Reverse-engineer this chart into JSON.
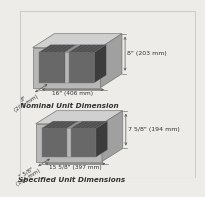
{
  "background_color": "#eeece8",
  "block1_label": "Nominal Unit Dimension",
  "block2_label": "Specified Unit Dimensions",
  "block1_dims": {
    "height_label": "8\" (203 mm)",
    "depth_label": "8\"\n(203 mm)",
    "width_label": "16\" (406 mm)"
  },
  "block2_dims": {
    "height_label": "7 5/8\" (194 mm)",
    "depth_label": "7 5/8\"\n(194 mm)",
    "width_label": "15 5/8\" (397 mm)"
  },
  "front_color": "#b8b8b8",
  "top_color": "#d0d0d0",
  "right_color": "#a0a0a0",
  "hole_face_color": "#686868",
  "hole_top_color": "#505050",
  "hole_right_color": "#3c3c3c",
  "divider_color": "#909090",
  "edge_color": "#787878",
  "annotation_color": "#555555",
  "text_color": "#333333",
  "label_fontsize": 4.5,
  "caption_fontsize": 5.2,
  "border_color": "#cccccc"
}
